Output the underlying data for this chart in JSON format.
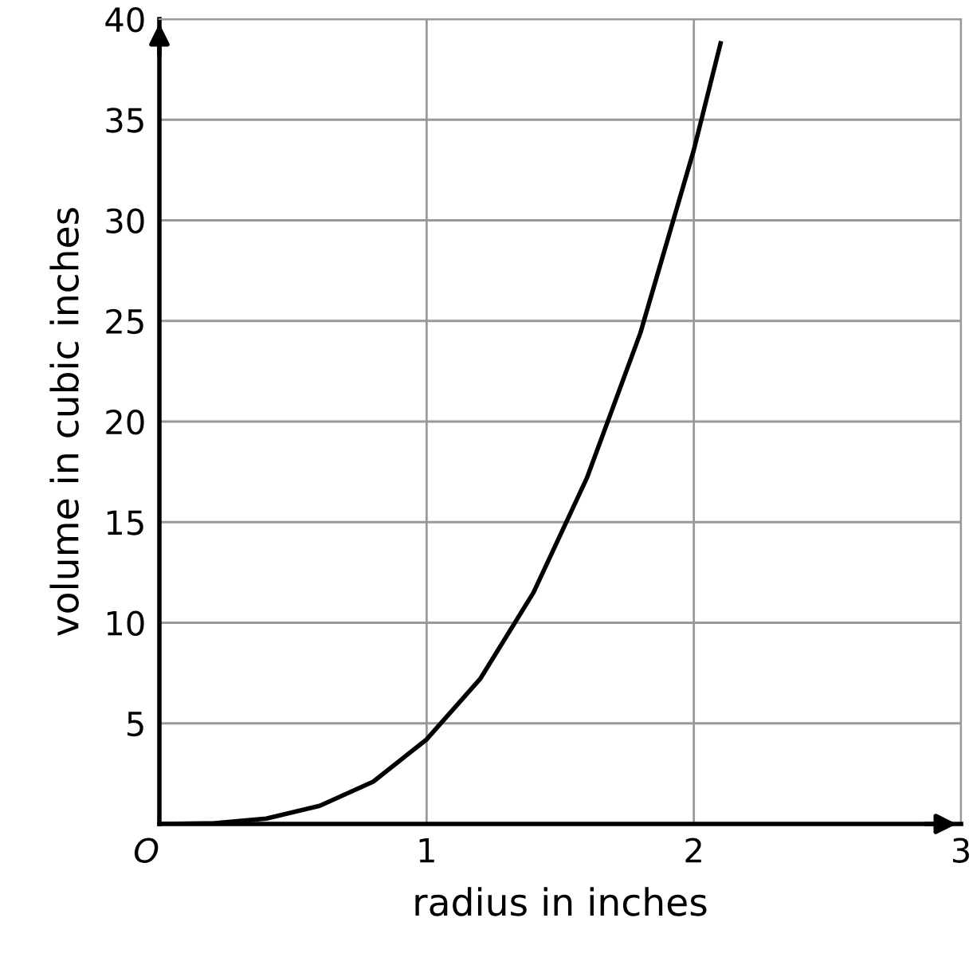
{
  "chart_data": {
    "type": "line",
    "xlabel": "radius in inches",
    "ylabel": "volume in cubic inches",
    "x": [
      0,
      0.2,
      0.4,
      0.6,
      0.8,
      1.0,
      1.2,
      1.4,
      1.6,
      1.8,
      2.0,
      2.1
    ],
    "series": [
      {
        "color": "#000000",
        "values": [
          0,
          0.03,
          0.27,
          0.9,
          2.1,
          4.2,
          7.2,
          11.5,
          17.2,
          24.4,
          33.5,
          38.8
        ]
      }
    ],
    "xlim": [
      0,
      3
    ],
    "ylim": [
      0,
      40
    ],
    "xticks": [
      {
        "value": 0,
        "label": "O"
      },
      1,
      2,
      3
    ],
    "yticks": [
      5,
      10,
      15,
      20,
      25,
      30,
      35,
      40
    ],
    "grid": true,
    "marker": "none",
    "line_style": "solid"
  }
}
